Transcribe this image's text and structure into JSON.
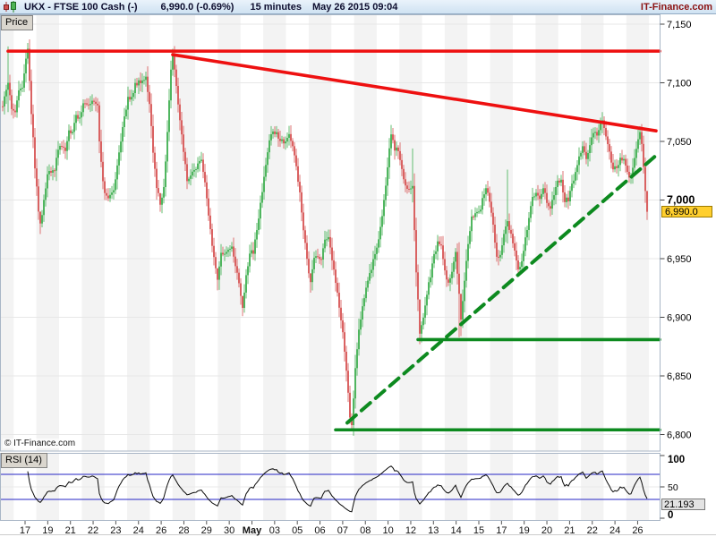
{
  "header": {
    "symbol_title": "UKX - FTSE 100 Cash (-)",
    "price_change": "6,990.0 (-0.69%)",
    "timeframe": "15 minutes",
    "datetime": "May 26 2015 09:04",
    "brand": "IT-Finance.com"
  },
  "price_panel": {
    "tab_label": "Price",
    "watermark": "© IT-Finance.com",
    "y_axis": {
      "ticks": [
        {
          "t": "7,150",
          "v": 7150
        },
        {
          "t": "7,100",
          "v": 7100
        },
        {
          "t": "7,050",
          "v": 7050
        },
        {
          "t": "7,000",
          "v": 7000,
          "b": 1
        },
        {
          "t": "6,950",
          "v": 6950
        },
        {
          "t": "6,900",
          "v": 6900
        },
        {
          "t": "6,850",
          "v": 6850
        },
        {
          "t": "6,800",
          "v": 6800
        }
      ]
    },
    "last_price_badge": {
      "text": "6,990.0",
      "value": 6990.0
    }
  },
  "rsi_panel": {
    "tab_label": "RSI (14)",
    "y_ticks": [
      {
        "t": "100",
        "v": 100,
        "b": 1
      },
      {
        "t": "50",
        "v": 50
      },
      {
        "t": "0",
        "v": 0,
        "b": 1
      }
    ],
    "value_box": {
      "text": "21.193",
      "value": 21.193
    }
  },
  "x_axis": {
    "labels": [
      {
        "t": "17"
      },
      {
        "t": "19"
      },
      {
        "t": "21"
      },
      {
        "t": "22"
      },
      {
        "t": "23"
      },
      {
        "t": "24"
      },
      {
        "t": "26"
      },
      {
        "t": "28"
      },
      {
        "t": "29"
      },
      {
        "t": "30"
      },
      {
        "t": "May",
        "b": 1
      },
      {
        "t": "03"
      },
      {
        "t": "05"
      },
      {
        "t": "06"
      },
      {
        "t": "07"
      },
      {
        "t": "08"
      },
      {
        "t": "10"
      },
      {
        "t": "12"
      },
      {
        "t": "13"
      },
      {
        "t": "14"
      },
      {
        "t": "15"
      },
      {
        "t": "17"
      },
      {
        "t": "19"
      },
      {
        "t": "20"
      },
      {
        "t": "21"
      },
      {
        "t": "22"
      },
      {
        "t": "24"
      },
      {
        "t": "26"
      }
    ]
  },
  "chart_data": {
    "type": "candlestick",
    "title": "UKX - FTSE 100 Cash (-)",
    "interval": "15 minutes",
    "as_of": "May 26 2015 09:04",
    "last_price": 6990.0,
    "change_pct": -0.69,
    "ylim": [
      6790,
      7158
    ],
    "y_ticks": [
      7150,
      7100,
      7050,
      7000,
      6950,
      6900,
      6850,
      6800
    ],
    "x_tick_labels": [
      "17",
      "19",
      "21",
      "22",
      "23",
      "24",
      "26",
      "28",
      "29",
      "30",
      "May",
      "03",
      "05",
      "06",
      "07",
      "08",
      "10",
      "12",
      "13",
      "14",
      "15",
      "17",
      "19",
      "20",
      "21",
      "22",
      "24",
      "26"
    ],
    "colors": {
      "up": "#3eae4f",
      "down": "#d65252",
      "trend_red": "#ee1010",
      "trend_green": "#0d8a1f",
      "rsi_line": "#0a0a0a",
      "rsi_band": "#2525c4",
      "band": "#f3f3f3"
    },
    "price_path": [
      [
        3,
        7080
      ],
      [
        7,
        7094
      ],
      [
        9,
        7100,
        7131,
        7075
      ],
      [
        13,
        7078
      ],
      [
        17,
        7076
      ],
      [
        21,
        7092
      ],
      [
        25,
        7097
      ],
      [
        29,
        7122
      ],
      [
        31,
        7129,
        7134,
        7116
      ],
      [
        35,
        7075
      ],
      [
        39,
        7028
      ],
      [
        43,
        6992
      ],
      [
        45,
        6980,
        6988,
        6971
      ],
      [
        49,
        6998
      ],
      [
        53,
        7022
      ],
      [
        57,
        7024
      ],
      [
        61,
        7026
      ],
      [
        65,
        7042
      ],
      [
        69,
        7046
      ],
      [
        73,
        7044
      ],
      [
        77,
        7058
      ],
      [
        81,
        7058
      ],
      [
        85,
        7072
      ],
      [
        89,
        7070
      ],
      [
        93,
        7082
      ],
      [
        97,
        7080
      ],
      [
        101,
        7084
      ],
      [
        105,
        7082
      ],
      [
        109,
        7080
      ],
      [
        111,
        7050,
        7084,
        7040
      ],
      [
        115,
        7014
      ],
      [
        119,
        7002
      ],
      [
        123,
        7004
      ],
      [
        127,
        7008
      ],
      [
        131,
        7030
      ],
      [
        135,
        7052
      ],
      [
        139,
        7072
      ],
      [
        143,
        7086
      ],
      [
        147,
        7088
      ],
      [
        151,
        7098
      ],
      [
        155,
        7100
      ],
      [
        159,
        7102,
        7108,
        7092
      ],
      [
        163,
        7104
      ],
      [
        167,
        7080
      ],
      [
        171,
        7042
      ],
      [
        175,
        7012
      ],
      [
        179,
        6996,
        7004,
        6990
      ],
      [
        183,
        7010
      ],
      [
        187,
        7058
      ],
      [
        191,
        7110
      ],
      [
        193,
        7124,
        7129,
        7106
      ],
      [
        197,
        7096
      ],
      [
        201,
        7068
      ],
      [
        205,
        7042
      ],
      [
        209,
        7018
      ],
      [
        213,
        7022
      ],
      [
        217,
        7026
      ],
      [
        221,
        7030
      ],
      [
        225,
        7034
      ],
      [
        229,
        7014
      ],
      [
        233,
        6988
      ],
      [
        237,
        6962
      ],
      [
        241,
        6940
      ],
      [
        243,
        6932,
        6938,
        6923
      ],
      [
        247,
        6954
      ],
      [
        251,
        6956
      ],
      [
        255,
        6958
      ],
      [
        259,
        6960
      ],
      [
        263,
        6944
      ],
      [
        267,
        6930
      ],
      [
        271,
        6908,
        6914,
        6901
      ],
      [
        275,
        6936
      ],
      [
        279,
        6954
      ],
      [
        283,
        6956
      ],
      [
        287,
        6974
      ],
      [
        291,
        6996
      ],
      [
        295,
        7020
      ],
      [
        299,
        7042
      ],
      [
        303,
        7056
      ],
      [
        307,
        7058
      ],
      [
        311,
        7054
      ],
      [
        315,
        7050
      ],
      [
        319,
        7048
      ],
      [
        323,
        7058
      ],
      [
        327,
        7044
      ],
      [
        331,
        7028
      ],
      [
        335,
        7006
      ],
      [
        339,
        6976
      ],
      [
        343,
        6948
      ],
      [
        347,
        6930,
        6936,
        6921
      ],
      [
        351,
        6950
      ],
      [
        355,
        6952
      ],
      [
        359,
        6950
      ],
      [
        363,
        6966
      ],
      [
        367,
        6968
      ],
      [
        371,
        6948
      ],
      [
        375,
        6930
      ],
      [
        379,
        6910
      ],
      [
        383,
        6886
      ],
      [
        387,
        6856
      ],
      [
        391,
        6816
      ],
      [
        393,
        6808,
        6818,
        6803
      ],
      [
        397,
        6856
      ],
      [
        401,
        6890
      ],
      [
        405,
        6908
      ],
      [
        409,
        6924
      ],
      [
        413,
        6936
      ],
      [
        417,
        6948
      ],
      [
        421,
        6960
      ],
      [
        425,
        6976
      ],
      [
        429,
        6998
      ],
      [
        433,
        7028
      ],
      [
        437,
        7056,
        7064,
        7038
      ],
      [
        441,
        7044
      ],
      [
        445,
        7042
      ],
      [
        449,
        7026
      ],
      [
        453,
        7012
      ],
      [
        457,
        7010
      ],
      [
        461,
        7012,
        7044,
        6998
      ],
      [
        465,
        6940
      ],
      [
        469,
        6886,
        6892,
        6877
      ],
      [
        473,
        6900
      ],
      [
        477,
        6920
      ],
      [
        481,
        6936
      ],
      [
        485,
        6952
      ],
      [
        489,
        6964
      ],
      [
        493,
        6960
      ],
      [
        497,
        6940
      ],
      [
        501,
        6928
      ],
      [
        505,
        6940
      ],
      [
        509,
        6954
      ],
      [
        513,
        6920,
        6964,
        6883
      ],
      [
        515,
        6898,
        6908,
        6884
      ],
      [
        519,
        6930
      ],
      [
        523,
        6962
      ],
      [
        527,
        6986
      ],
      [
        531,
        6988
      ],
      [
        535,
        6988
      ],
      [
        539,
        7000
      ],
      [
        543,
        7012
      ],
      [
        547,
        7000
      ],
      [
        551,
        6978
      ],
      [
        555,
        6952
      ],
      [
        559,
        6952
      ],
      [
        563,
        6970
      ],
      [
        567,
        6982,
        7026,
        6963
      ],
      [
        571,
        6970
      ],
      [
        575,
        6956
      ],
      [
        579,
        6940
      ],
      [
        583,
        6946
      ],
      [
        587,
        6966
      ],
      [
        591,
        6986
      ],
      [
        595,
        7004
      ],
      [
        599,
        7004
      ],
      [
        603,
        7002
      ],
      [
        607,
        7012
      ],
      [
        611,
        6998
      ],
      [
        615,
        6994
      ],
      [
        619,
        7006
      ],
      [
        623,
        7018
      ],
      [
        627,
        7016
      ],
      [
        631,
        7000
      ],
      [
        635,
        7000
      ],
      [
        639,
        7012
      ],
      [
        643,
        7024
      ],
      [
        647,
        7036
      ],
      [
        651,
        7046
      ],
      [
        655,
        7034
      ],
      [
        659,
        7046
      ],
      [
        663,
        7058
      ],
      [
        667,
        7056
      ],
      [
        671,
        7064
      ],
      [
        673,
        7068,
        7075,
        7057
      ],
      [
        677,
        7054
      ],
      [
        681,
        7040
      ],
      [
        685,
        7028
      ],
      [
        689,
        7026
      ],
      [
        693,
        7036
      ],
      [
        697,
        7034
      ],
      [
        701,
        7022
      ],
      [
        705,
        7020
      ],
      [
        709,
        7034
      ],
      [
        713,
        7050
      ],
      [
        715,
        7058,
        7063,
        7047
      ],
      [
        717,
        7048
      ],
      [
        719,
        7030
      ],
      [
        721,
        7008
      ],
      [
        723,
        6990,
        6998,
        6983
      ]
    ],
    "trend_lines": [
      {
        "kind": "horizontal-resistance",
        "c": "#ee1010",
        "w": 3.6,
        "x1": 9,
        "p1": 7127,
        "x2": 737,
        "p2": 7127
      },
      {
        "kind": "descending-resistance",
        "c": "#ee1010",
        "w": 3.6,
        "x1": 193,
        "p1": 7124,
        "x2": 733,
        "p2": 7059
      },
      {
        "kind": "ascending-support",
        "c": "#0d8a1f",
        "w": 4,
        "dash": "13 8",
        "x1": 388,
        "p1": 6810,
        "x2": 736,
        "p2": 7040
      },
      {
        "kind": "horizontal-support",
        "c": "#0d8a1f",
        "w": 3.6,
        "x1": 467,
        "p1": 6881,
        "x2": 737,
        "p2": 6881
      },
      {
        "kind": "horizontal-support",
        "c": "#0d8a1f",
        "w": 3.6,
        "x1": 375,
        "p1": 6804,
        "x2": 737,
        "p2": 6804
      }
    ],
    "rsi": {
      "period": 14,
      "last_value": 21.193,
      "levels": [
        70,
        30
      ],
      "y_ticks": [
        100,
        50,
        0
      ]
    }
  }
}
